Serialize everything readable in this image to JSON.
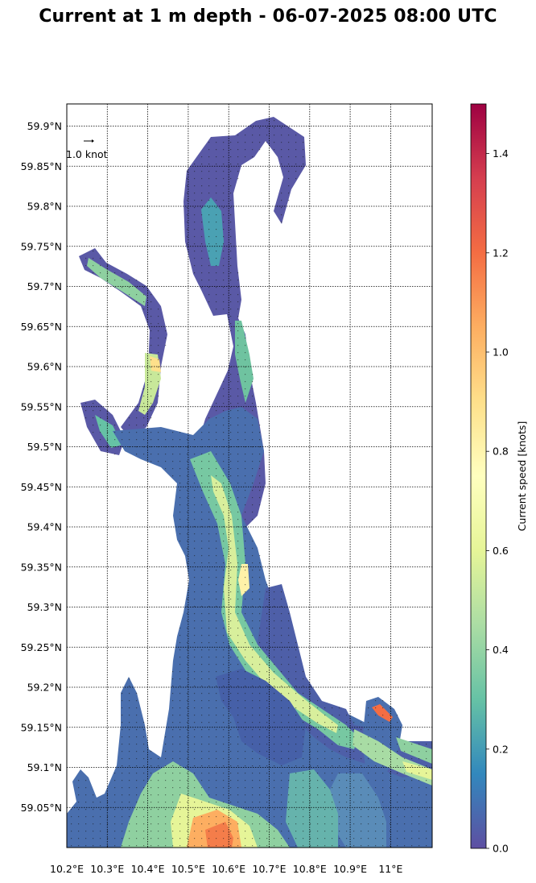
{
  "title": "Current at 1 m depth - 06-07-2025 08:00 UTC",
  "map": {
    "lon_range": [
      10.2,
      11.1
    ],
    "lat_range": [
      59.0,
      59.93
    ],
    "lon_ticks": [
      {
        "value": 10.2,
        "label": "10.2°E"
      },
      {
        "value": 10.3,
        "label": "10.3°E"
      },
      {
        "value": 10.4,
        "label": "10.4°E"
      },
      {
        "value": 10.5,
        "label": "10.5°E"
      },
      {
        "value": 10.6,
        "label": "10.6°E"
      },
      {
        "value": 10.7,
        "label": "10.7°E"
      },
      {
        "value": 10.8,
        "label": "10.8°E"
      },
      {
        "value": 10.9,
        "label": "10.9°E"
      },
      {
        "value": 11.0,
        "label": "11°E"
      }
    ],
    "lat_ticks": [
      {
        "value": 59.9,
        "label": "59.9°N"
      },
      {
        "value": 59.85,
        "label": "59.85°N"
      },
      {
        "value": 59.8,
        "label": "59.8°N"
      },
      {
        "value": 59.75,
        "label": "59.75°N"
      },
      {
        "value": 59.7,
        "label": "59.7°N"
      },
      {
        "value": 59.65,
        "label": "59.65°N"
      },
      {
        "value": 59.6,
        "label": "59.6°N"
      },
      {
        "value": 59.55,
        "label": "59.55°N"
      },
      {
        "value": 59.5,
        "label": "59.5°N"
      },
      {
        "value": 59.45,
        "label": "59.45°N"
      },
      {
        "value": 59.4,
        "label": "59.4°N"
      },
      {
        "value": 59.35,
        "label": "59.35°N"
      },
      {
        "value": 59.3,
        "label": "59.3°N"
      },
      {
        "value": 59.25,
        "label": "59.25°N"
      },
      {
        "value": 59.2,
        "label": "59.2°N"
      },
      {
        "value": 59.15,
        "label": "59.15°N"
      },
      {
        "value": 59.1,
        "label": "59.1°N"
      },
      {
        "value": 59.05,
        "label": "59.05°N"
      }
    ],
    "gridlines": "dotted",
    "quiver_key": {
      "label": "1.0 knot",
      "placement": "top-left"
    }
  },
  "colorbar": {
    "label": "Current speed [knots]",
    "range": [
      0.0,
      1.5
    ],
    "colormap": "Spectral_r",
    "ticks": [
      {
        "value": 0.0,
        "label": "0.0"
      },
      {
        "value": 0.2,
        "label": "0.2"
      },
      {
        "value": 0.4,
        "label": "0.4"
      },
      {
        "value": 0.6,
        "label": "0.6"
      },
      {
        "value": 0.8,
        "label": "0.8"
      },
      {
        "value": 1.0,
        "label": "1.0"
      },
      {
        "value": 1.2,
        "label": "1.2"
      },
      {
        "value": 1.4,
        "label": "1.4"
      }
    ],
    "colors": [
      "#5e4fa2",
      "#3288bd",
      "#66c2a5",
      "#abdda4",
      "#e6f598",
      "#ffffbf",
      "#fee08b",
      "#fdae61",
      "#f46d43",
      "#d53e4f",
      "#9e0142"
    ]
  }
}
